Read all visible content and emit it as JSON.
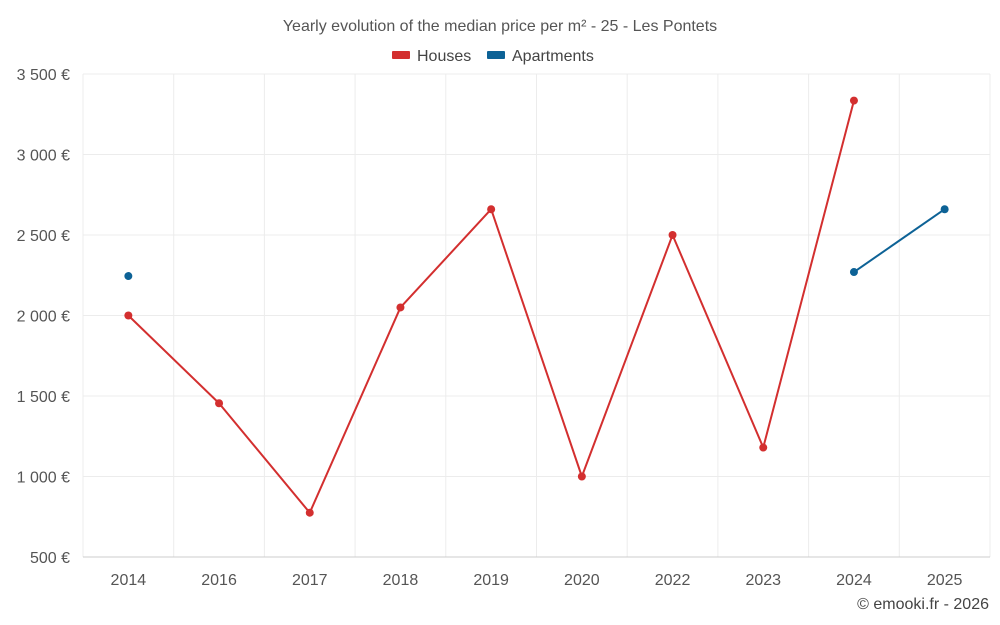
{
  "colors": {
    "houses": "#d32f2f",
    "apartments": "#0d6296",
    "grid": "#ececec"
  },
  "credit": "© emooki.fr - 2026",
  "chart_data": {
    "type": "line",
    "title": "Yearly evolution of the median price per m² - 25 - Les Pontets",
    "categories": [
      "2014",
      "2016",
      "2017",
      "2018",
      "2019",
      "2020",
      "2022",
      "2023",
      "2024",
      "2025"
    ],
    "ylim": [
      500,
      3500
    ],
    "yticks": [
      500,
      1000,
      1500,
      2000,
      2500,
      3000,
      3500
    ],
    "ytick_labels": [
      "500 €",
      "1 000 €",
      "1 500 €",
      "2 000 €",
      "2 500 €",
      "3 000 €",
      "3 500 €"
    ],
    "legend_position": "top-center",
    "series": [
      {
        "name": "Houses",
        "color_key": "houses",
        "values": [
          2000,
          1455,
          775,
          2050,
          2660,
          1000,
          2500,
          1180,
          3335,
          null
        ]
      },
      {
        "name": "Apartments",
        "color_key": "apartments",
        "values": [
          2245,
          null,
          null,
          null,
          null,
          null,
          null,
          null,
          2270,
          2660
        ]
      }
    ]
  }
}
